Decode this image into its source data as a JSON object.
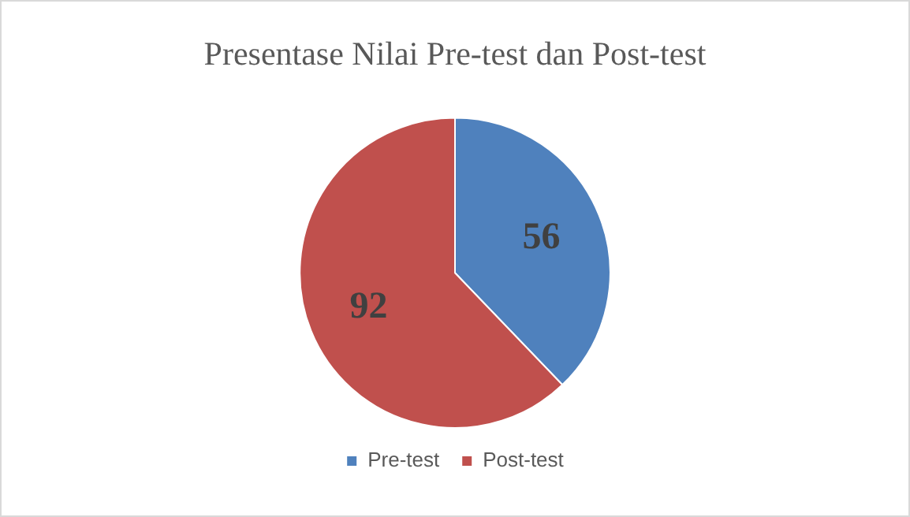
{
  "chart_data": {
    "type": "pie",
    "title": "Presentase Nilai Pre-test dan Post-test",
    "categories": [
      "Pre-test",
      "Post-test"
    ],
    "values": [
      56,
      92
    ],
    "colors": [
      "#4f81bd",
      "#c0504d"
    ],
    "data_labels": true,
    "legend": "bottom"
  }
}
